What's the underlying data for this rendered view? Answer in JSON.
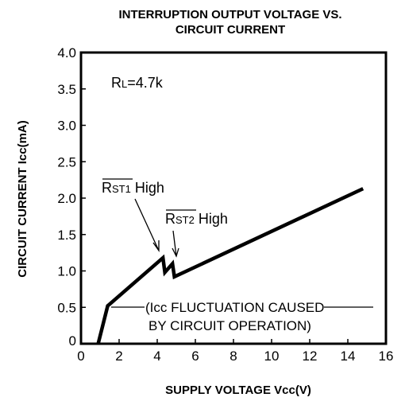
{
  "chart_data": {
    "type": "line",
    "title": [
      "INTERRUPTION OUTPUT VOLTAGE VS.",
      "CIRCUIT CURRENT"
    ],
    "x_label": "SUPPLY VOLTAGE Vcc(V)",
    "y_label": "CIRCUIT CURRENT  Icc(mA)",
    "xlim": [
      0,
      16
    ],
    "xticks": [
      0,
      2,
      4,
      6,
      8,
      10,
      12,
      14,
      16
    ],
    "ylim": [
      0,
      4
    ],
    "yticks": [
      0,
      0.5,
      {
        "value": 1,
        "label": "1.0"
      },
      1.5,
      {
        "value": 2,
        "label": "2.0"
      },
      2.5,
      {
        "value": 3,
        "label": "3.0"
      },
      3.5,
      {
        "value": 4,
        "label": "4.0"
      }
    ],
    "series": [
      {
        "color": "#000000",
        "x": [
          0.9,
          1.4,
          4.3,
          4.4,
          4.8,
          4.9,
          14.8
        ],
        "values": [
          0,
          0.52,
          1.18,
          0.98,
          1.1,
          0.92,
          2.13
        ]
      }
    ],
    "annotations": {
      "rl": [
        "R",
        "L",
        "=4.7k"
      ],
      "rst1": [
        "R",
        "ST1",
        " High"
      ],
      "rst2": [
        "R",
        "ST2",
        " High"
      ],
      "note": [
        "(Icc FLUCTUATION CAUSED",
        "BY CIRCUIT OPERATION)"
      ]
    }
  }
}
